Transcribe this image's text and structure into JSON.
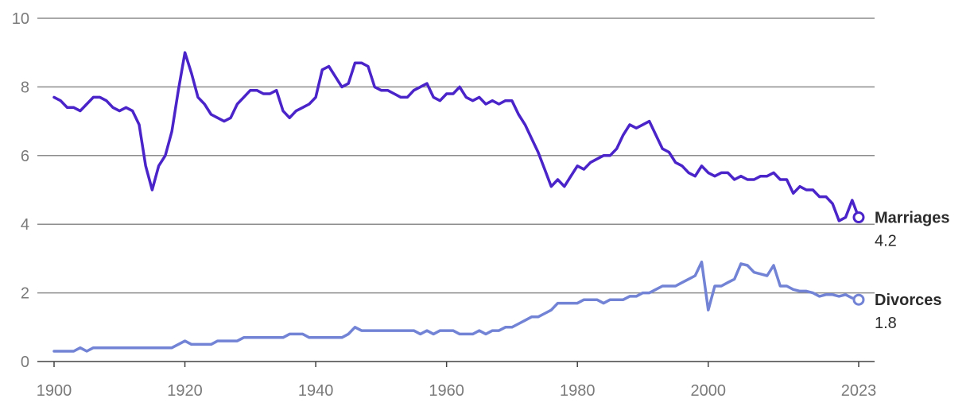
{
  "chart_data": {
    "type": "line",
    "title": "",
    "xlabel": "",
    "ylabel": "",
    "xlim": [
      1900,
      2023
    ],
    "ylim": [
      0,
      10
    ],
    "grid": true,
    "legend": "end-labels",
    "x_ticks": [
      "1900",
      "1920",
      "1940",
      "1960",
      "1980",
      "2000",
      "2023"
    ],
    "y_ticks": [
      "0",
      "2",
      "4",
      "6",
      "8",
      "10"
    ],
    "series": [
      {
        "name": "Marriages",
        "end_label": "4.2",
        "color": "#4a23c9",
        "x": [
          1900,
          1901,
          1902,
          1903,
          1904,
          1905,
          1906,
          1907,
          1908,
          1909,
          1910,
          1911,
          1912,
          1913,
          1914,
          1915,
          1916,
          1917,
          1918,
          1919,
          1920,
          1921,
          1922,
          1923,
          1924,
          1925,
          1926,
          1927,
          1928,
          1929,
          1930,
          1931,
          1932,
          1933,
          1934,
          1935,
          1936,
          1937,
          1938,
          1939,
          1940,
          1941,
          1942,
          1943,
          1944,
          1945,
          1946,
          1947,
          1948,
          1949,
          1950,
          1951,
          1952,
          1953,
          1954,
          1955,
          1956,
          1957,
          1958,
          1959,
          1960,
          1961,
          1962,
          1963,
          1964,
          1965,
          1966,
          1967,
          1968,
          1969,
          1970,
          1971,
          1972,
          1973,
          1974,
          1975,
          1976,
          1977,
          1978,
          1979,
          1980,
          1981,
          1982,
          1983,
          1984,
          1985,
          1986,
          1987,
          1988,
          1989,
          1990,
          1991,
          1992,
          1993,
          1994,
          1995,
          1996,
          1997,
          1998,
          1999,
          2000,
          2001,
          2002,
          2003,
          2004,
          2005,
          2006,
          2007,
          2008,
          2009,
          2010,
          2011,
          2012,
          2013,
          2014,
          2015,
          2016,
          2017,
          2018,
          2019,
          2020,
          2021,
          2022,
          2023
        ],
        "values": [
          7.7,
          7.6,
          7.4,
          7.4,
          7.3,
          7.5,
          7.7,
          7.7,
          7.6,
          7.4,
          7.3,
          7.4,
          7.3,
          6.9,
          5.7,
          5.0,
          5.7,
          6.0,
          6.7,
          7.9,
          9.0,
          8.4,
          7.7,
          7.5,
          7.2,
          7.1,
          7.0,
          7.1,
          7.5,
          7.7,
          7.9,
          7.9,
          7.8,
          7.8,
          7.9,
          7.3,
          7.1,
          7.3,
          7.4,
          7.5,
          7.7,
          8.5,
          8.6,
          8.3,
          8.0,
          8.1,
          8.7,
          8.7,
          8.6,
          8.0,
          7.9,
          7.9,
          7.8,
          7.7,
          7.7,
          7.9,
          8.0,
          8.1,
          7.7,
          7.6,
          7.8,
          7.8,
          8.0,
          7.7,
          7.6,
          7.7,
          7.5,
          7.6,
          7.5,
          7.6,
          7.6,
          7.2,
          6.9,
          6.5,
          6.1,
          5.6,
          5.1,
          5.3,
          5.1,
          5.4,
          5.7,
          5.6,
          5.8,
          5.9,
          6.0,
          6.0,
          6.2,
          6.6,
          6.9,
          6.8,
          6.9,
          7.0,
          6.6,
          6.2,
          6.1,
          5.8,
          5.7,
          5.5,
          5.4,
          5.7,
          5.5,
          5.4,
          5.5,
          5.5,
          5.3,
          5.4,
          5.3,
          5.3,
          5.4,
          5.4,
          5.5,
          5.3,
          5.3,
          4.9,
          5.1,
          5.0,
          5.0,
          4.8,
          4.8,
          4.6,
          4.1,
          4.2,
          4.7,
          4.2
        ]
      },
      {
        "name": "Divorces",
        "end_label": "1.8",
        "color": "#7283d6",
        "x": [
          1900,
          1901,
          1902,
          1903,
          1904,
          1905,
          1906,
          1907,
          1908,
          1909,
          1910,
          1911,
          1912,
          1913,
          1914,
          1915,
          1916,
          1917,
          1918,
          1919,
          1920,
          1921,
          1922,
          1923,
          1924,
          1925,
          1926,
          1927,
          1928,
          1929,
          1930,
          1931,
          1932,
          1933,
          1934,
          1935,
          1936,
          1937,
          1938,
          1939,
          1940,
          1941,
          1942,
          1943,
          1944,
          1945,
          1946,
          1947,
          1948,
          1949,
          1950,
          1951,
          1952,
          1953,
          1954,
          1955,
          1956,
          1957,
          1958,
          1959,
          1960,
          1961,
          1962,
          1963,
          1964,
          1965,
          1966,
          1967,
          1968,
          1969,
          1970,
          1971,
          1972,
          1973,
          1974,
          1975,
          1976,
          1977,
          1978,
          1979,
          1980,
          1981,
          1982,
          1983,
          1984,
          1985,
          1986,
          1987,
          1988,
          1989,
          1990,
          1991,
          1992,
          1993,
          1994,
          1995,
          1996,
          1997,
          1998,
          1999,
          2000,
          2001,
          2002,
          2003,
          2004,
          2005,
          2006,
          2007,
          2008,
          2009,
          2010,
          2011,
          2012,
          2013,
          2014,
          2015,
          2016,
          2017,
          2018,
          2019,
          2020,
          2021,
          2022,
          2023
        ],
        "values": [
          0.3,
          0.3,
          0.3,
          0.3,
          0.4,
          0.3,
          0.4,
          0.4,
          0.4,
          0.4,
          0.4,
          0.4,
          0.4,
          0.4,
          0.4,
          0.4,
          0.4,
          0.4,
          0.4,
          0.5,
          0.6,
          0.5,
          0.5,
          0.5,
          0.5,
          0.6,
          0.6,
          0.6,
          0.6,
          0.7,
          0.7,
          0.7,
          0.7,
          0.7,
          0.7,
          0.7,
          0.8,
          0.8,
          0.8,
          0.7,
          0.7,
          0.7,
          0.7,
          0.7,
          0.7,
          0.8,
          1.0,
          0.9,
          0.9,
          0.9,
          0.9,
          0.9,
          0.9,
          0.9,
          0.9,
          0.9,
          0.8,
          0.9,
          0.8,
          0.9,
          0.9,
          0.9,
          0.8,
          0.8,
          0.8,
          0.9,
          0.8,
          0.9,
          0.9,
          1.0,
          1.0,
          1.1,
          1.2,
          1.3,
          1.3,
          1.4,
          1.5,
          1.7,
          1.7,
          1.7,
          1.7,
          1.8,
          1.8,
          1.8,
          1.7,
          1.8,
          1.8,
          1.8,
          1.9,
          1.9,
          2.0,
          2.0,
          2.1,
          2.2,
          2.2,
          2.2,
          2.3,
          2.4,
          2.5,
          2.9,
          1.5,
          2.2,
          2.2,
          2.3,
          2.4,
          2.85,
          2.8,
          2.6,
          2.55,
          2.5,
          2.8,
          2.2,
          2.2,
          2.1,
          2.05,
          2.05,
          2.0,
          1.9,
          1.95,
          1.95,
          1.9,
          1.95,
          1.85,
          1.8
        ]
      }
    ]
  }
}
